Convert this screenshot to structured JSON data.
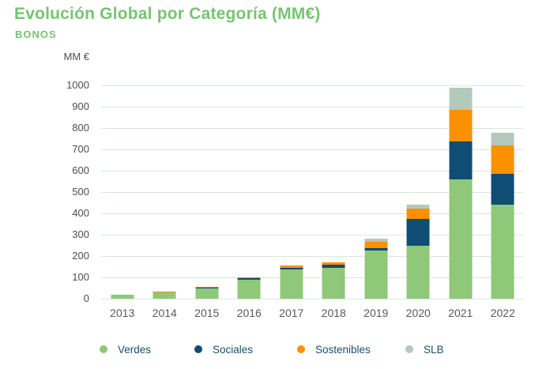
{
  "header": {
    "title": "Evolución Global por Categoría (MM€)",
    "subtitle": "BONOS"
  },
  "chart_data": {
    "type": "bar",
    "stacked": true,
    "title": "Evolución Global por Categoría (MM€)",
    "subtitle": "BONOS",
    "unit_label": "MM €",
    "xlabel": "",
    "ylabel": "MM €",
    "ylim": [
      0,
      1000
    ],
    "ytick_step": 100,
    "grid": true,
    "legend_position": "bottom",
    "categories": [
      "2013",
      "2014",
      "2015",
      "2016",
      "2017",
      "2018",
      "2019",
      "2020",
      "2021",
      "2022"
    ],
    "series": [
      {
        "name": "Verdes",
        "color": "#8fc878",
        "values": [
          20,
          29,
          48,
          88,
          136,
          146,
          225,
          248,
          560,
          440
        ]
      },
      {
        "name": "Sociales",
        "color": "#0f4d75",
        "values": [
          0,
          0,
          4,
          9,
          10,
          12,
          13,
          128,
          177,
          145
        ]
      },
      {
        "name": "Sostenibles",
        "color": "#fb9100",
        "values": [
          0,
          6,
          3,
          3,
          10,
          14,
          30,
          46,
          150,
          132
        ]
      },
      {
        "name": "SLB",
        "color": "#b3c9bc",
        "values": [
          0,
          0,
          0,
          0,
          0,
          0,
          12,
          18,
          103,
          60
        ]
      }
    ],
    "totals": [
      20,
      35,
      55,
      100,
      156,
      172,
      280,
      440,
      990,
      777
    ]
  }
}
